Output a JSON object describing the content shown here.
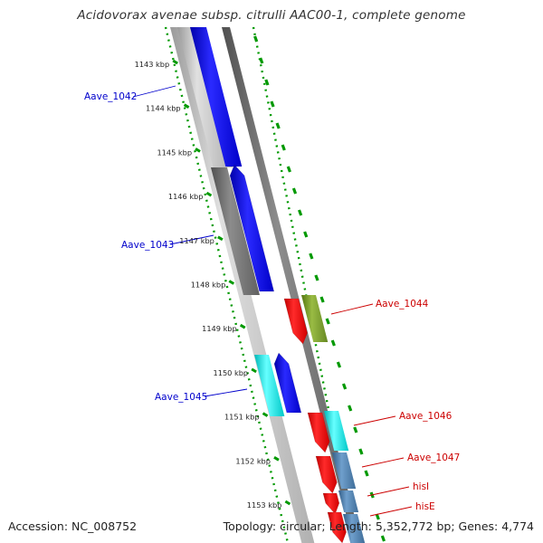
{
  "title": "Acidovorax avenae subsp. citrulli AAC00-1, complete genome",
  "footer": {
    "accession": "Accession: NC_008752",
    "topology": "Topology: circular; Length: 5,352,772 bp; Genes: 4,774"
  },
  "scale": {
    "unit": "kbp",
    "ticks": [
      "1143 kbp",
      "1144 kbp",
      "1145 kbp",
      "1146 kbp",
      "1147 kbp",
      "1148 kbp",
      "1149 kbp",
      "1150 kbp",
      "1151 kbp",
      "1152 kbp",
      "1153 kbp"
    ]
  },
  "genes": {
    "left": [
      {
        "name": "Aave_1042",
        "color": "#0000cc"
      },
      {
        "name": "Aave_1043",
        "color": "#0000cc"
      },
      {
        "name": "Aave_1045",
        "color": "#0000cc"
      }
    ],
    "right": [
      {
        "name": "Aave_1044",
        "color": "#cc0000"
      },
      {
        "name": "Aave_1046",
        "color": "#cc0000"
      },
      {
        "name": "Aave_1047",
        "color": "#cc0000"
      },
      {
        "name": "hisI",
        "color": "#cc0000"
      },
      {
        "name": "hisE",
        "color": "#cc0000"
      }
    ]
  },
  "colors": {
    "scale": "#009900",
    "backbone_left": "#bbbbbb",
    "backbone_right": "#888888",
    "gene_blue": "#0000ff",
    "gene_red": "#ff0000",
    "gene_cyan": "#00dddd",
    "gene_olive": "#779922",
    "gene_steel": "#4477aa"
  }
}
